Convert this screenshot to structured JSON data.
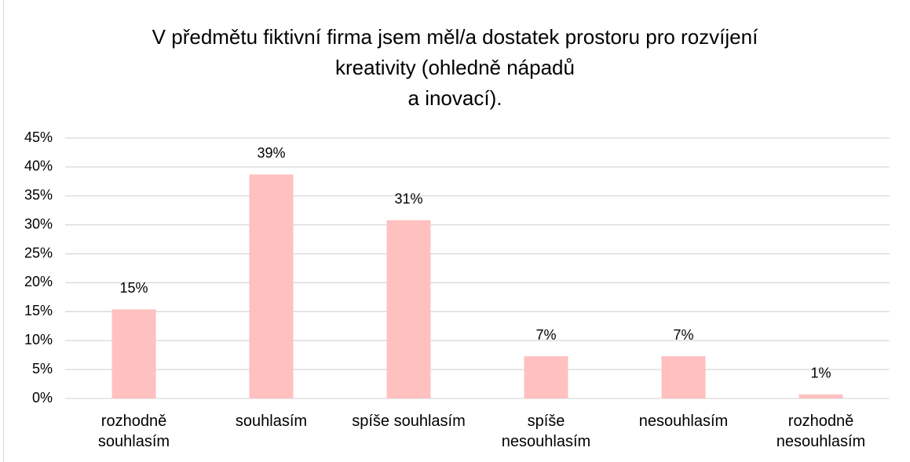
{
  "chart_data": {
    "type": "bar",
    "title": "V předmětu fiktivní firma jsem měl/a dostatek prostoru pro rozvíjení\nkreativity (ohledně nápadů\na inovací).",
    "categories": [
      "rozhodně\nsouhlasím",
      "souhlasím",
      "spíše souhlasím",
      "spíše\nnesouhlasím",
      "nesouhlasím",
      "rozhodně\nnesouhlasím"
    ],
    "values": [
      15.4,
      38.7,
      30.8,
      7.3,
      7.3,
      0.7
    ],
    "value_labels": [
      "15%",
      "39%",
      "31%",
      "7%",
      "7%",
      "1%"
    ],
    "color": "#ffc0c0",
    "ylim": [
      0,
      45
    ],
    "yticks": [
      {
        "value": 0,
        "label": "0%"
      },
      {
        "value": 5,
        "label": "5%"
      },
      {
        "value": 10,
        "label": "10%"
      },
      {
        "value": 15,
        "label": "15%"
      },
      {
        "value": 20,
        "label": "20%"
      },
      {
        "value": 25,
        "label": "25%"
      },
      {
        "value": 30,
        "label": "30%"
      },
      {
        "value": 35,
        "label": "35%"
      },
      {
        "value": 40,
        "label": "40%"
      },
      {
        "value": 45,
        "label": "45%"
      }
    ],
    "grid": true
  }
}
